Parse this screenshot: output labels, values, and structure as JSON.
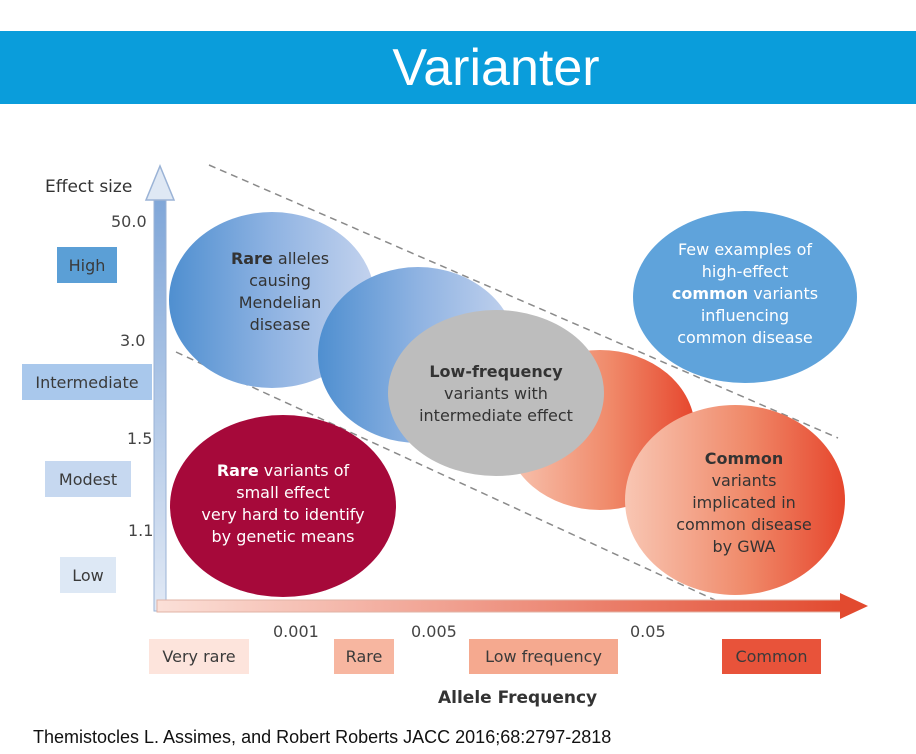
{
  "title": "Varianter",
  "y_axis": {
    "label": "Effect size",
    "ticks": [
      "50.0",
      "3.0",
      "1.5",
      "1.1"
    ],
    "categories": [
      {
        "label": "High",
        "color": "#5b9fd6"
      },
      {
        "label": "Intermediate",
        "color": "#a9c8ec"
      },
      {
        "label": "Modest",
        "color": "#c6d8f0"
      },
      {
        "label": "Low",
        "color": "#dde8f5"
      }
    ]
  },
  "x_axis": {
    "label": "Allele Frequency",
    "ticks": [
      "0.001",
      "0.005",
      "0.05"
    ],
    "categories": [
      {
        "label": "Very rare",
        "color": "#fde4dc"
      },
      {
        "label": "Rare",
        "color": "#f7b6a0"
      },
      {
        "label": "Low frequency",
        "color": "#f5a98f"
      },
      {
        "label": "Common",
        "color": "#e8533a"
      }
    ]
  },
  "blobs": {
    "rare_mendelian": {
      "bold": "Rare",
      "rest_first": " alleles",
      "lines": [
        "causing",
        "Mendelian",
        "disease"
      ]
    },
    "low_frequency": {
      "bold": "Low-frequency",
      "lines": [
        "variants with",
        "intermediate effect"
      ]
    },
    "common_gwa": {
      "bold": "Common",
      "lines": [
        "variants",
        "implicated in",
        "common disease",
        "by GWA"
      ]
    },
    "few_examples": {
      "line1": "Few examples of",
      "line2": "high-effect",
      "bold": "common",
      "rest": " variants",
      "line4": "influencing",
      "line5": "common disease"
    },
    "rare_small": {
      "bold": "Rare",
      "rest_first": " variants of",
      "lines": [
        "small effect",
        "very hard to identify",
        "by genetic means"
      ]
    }
  },
  "citation": "Themistocles L. Assimes, and Robert Roberts JACC 2016;68:2797-2818"
}
